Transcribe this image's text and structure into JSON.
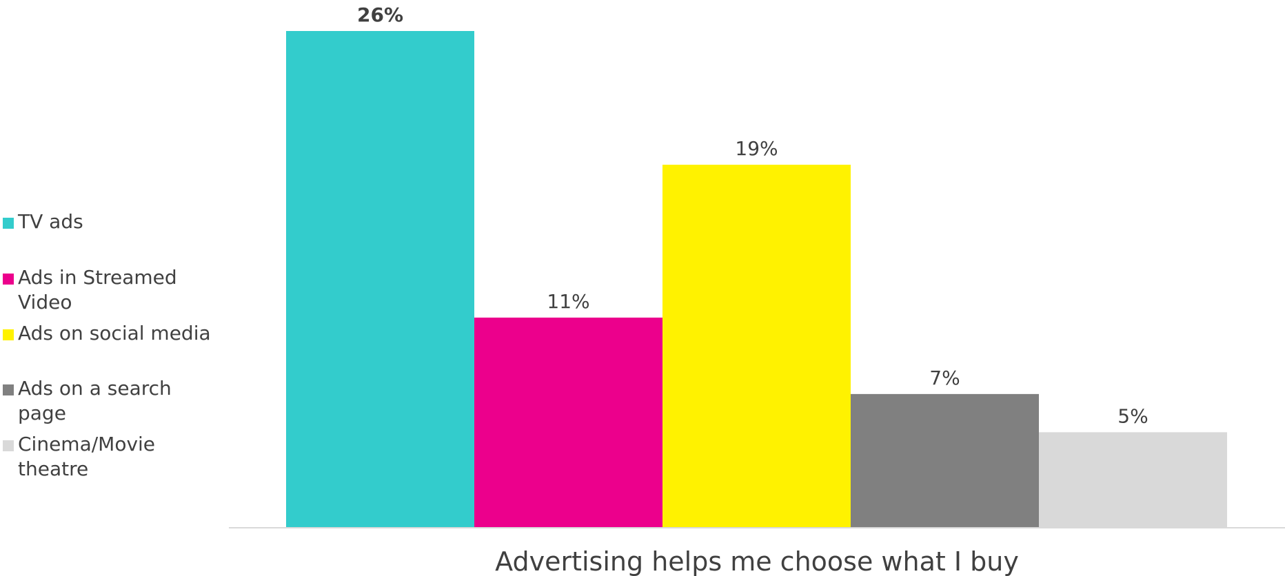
{
  "chart_data": {
    "type": "bar",
    "title": "",
    "xlabel": "",
    "ylabel": "",
    "categories": [
      "Advertising helps me choose what I buy"
    ],
    "series": [
      {
        "name": "TV ads",
        "values": [
          26
        ],
        "label": "26%",
        "color": "#33CCCC",
        "label_bold": true
      },
      {
        "name": "Ads in Streamed Video",
        "values": [
          11
        ],
        "label": "11%",
        "color": "#EC008C",
        "label_bold": false
      },
      {
        "name": "Ads on social media",
        "values": [
          19
        ],
        "label": "19%",
        "color": "#FFF200",
        "label_bold": false
      },
      {
        "name": "Ads on a search page",
        "values": [
          7
        ],
        "label": "7%",
        "color": "#808080",
        "label_bold": false
      },
      {
        "name": "Cinema/Movie theatre",
        "values": [
          5
        ],
        "label": "5%",
        "color": "#D9D9D9",
        "label_bold": false
      }
    ],
    "ylim": [
      0,
      26
    ],
    "grid": false,
    "legend": "left",
    "axis_line_color": "#D9D9D9",
    "text_color": "#404040"
  }
}
